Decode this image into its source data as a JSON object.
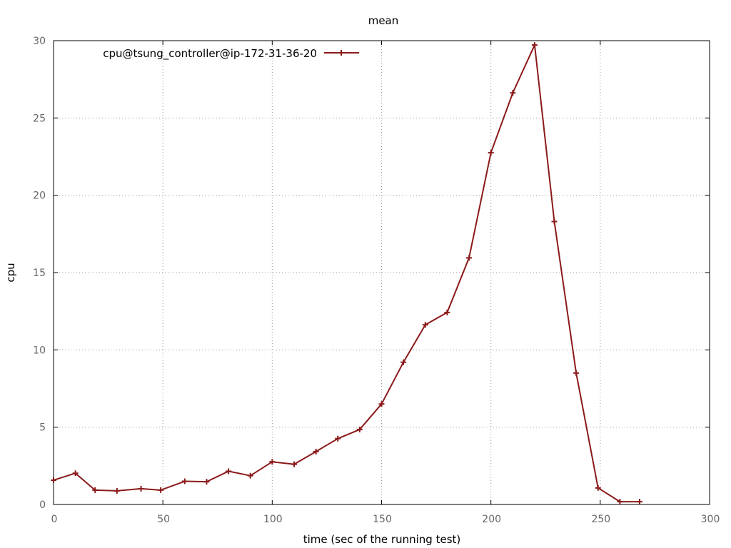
{
  "chart_data": {
    "type": "line",
    "title": "mean",
    "xlabel": "time (sec of the running test)",
    "ylabel": "cpu",
    "xlim": [
      0,
      300
    ],
    "ylim": [
      0,
      30
    ],
    "xticks": [
      0,
      50,
      100,
      150,
      200,
      250,
      300
    ],
    "yticks": [
      0,
      5,
      10,
      15,
      20,
      25,
      30
    ],
    "grid": true,
    "legend_position": "top-left",
    "series": [
      {
        "name": "cpu@tsung_controller@ip-172-31-36-20",
        "color": "#8b1a1a",
        "marker": "plus",
        "x": [
          0,
          10,
          19,
          29,
          40,
          49,
          60,
          70,
          80,
          90,
          100,
          110,
          120,
          130,
          140,
          150,
          160,
          170,
          180,
          190,
          200,
          210,
          220,
          229,
          239,
          249,
          259,
          268
        ],
        "y": [
          1.57,
          2.02,
          0.93,
          0.88,
          1.02,
          0.93,
          1.5,
          1.47,
          2.15,
          1.86,
          2.76,
          2.6,
          3.42,
          4.26,
          4.85,
          6.5,
          9.2,
          11.62,
          12.42,
          15.95,
          22.75,
          26.62,
          29.72,
          18.3,
          8.5,
          1.07,
          0.18,
          0.18
        ]
      }
    ]
  }
}
